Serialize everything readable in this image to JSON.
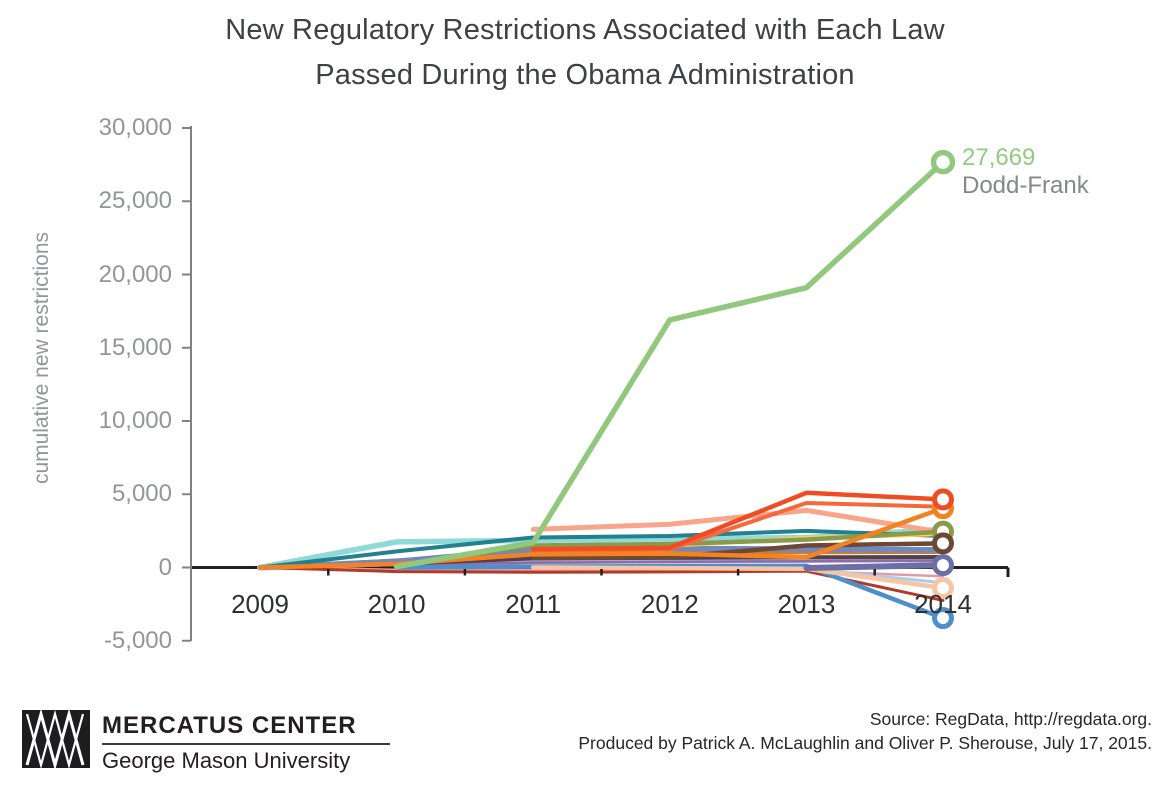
{
  "title": {
    "line1": "New Regulatory Restrictions Associated with Each Law",
    "line2": "Passed During the Obama Administration"
  },
  "chart_data": {
    "type": "line",
    "title": "New Regulatory Restrictions Associated with Each Law Passed During the Obama Administration",
    "xlabel": "",
    "ylabel": "cumulative new restrictions",
    "x": [
      2009,
      2010,
      2011,
      2012,
      2013,
      2014
    ],
    "x_tick_labels": [
      "2009",
      "2010",
      "2011",
      "2012",
      "2013",
      "2014"
    ],
    "y_ticks": [
      {
        "value": 30000,
        "label": "30,000"
      },
      {
        "value": 25000,
        "label": "25,000"
      },
      {
        "value": 20000,
        "label": "20,000"
      },
      {
        "value": 15000,
        "label": "15,000"
      },
      {
        "value": 10000,
        "label": "10,000"
      },
      {
        "value": 5000,
        "label": "5,000"
      },
      {
        "value": 0,
        "label": "0"
      },
      {
        "value": -5000,
        "label": "-5,000"
      }
    ],
    "ylim": [
      -5000,
      30000
    ],
    "grid": false,
    "legend_position": "none",
    "axis_colors": {
      "y_axis": "#808285",
      "x_axis": "#231f20",
      "y_tick_text": "#939598",
      "x_tick_text": "#2f3032"
    },
    "series": [
      {
        "name": "unlabeled-lavender",
        "color": "#b7aecf",
        "width": 6,
        "marker": false,
        "values": [
          0,
          300,
          430,
          480,
          520,
          560
        ]
      },
      {
        "name": "unlabeled-pink",
        "color": "#e39aa7",
        "width": 2.5,
        "marker": false,
        "values": [
          0,
          -150,
          -200,
          -230,
          -240,
          -600
        ]
      },
      {
        "name": "unlabeled-purple",
        "color": "#8d6cab",
        "width": 2.5,
        "marker": false,
        "values": [
          0,
          180,
          330,
          380,
          430,
          480
        ]
      },
      {
        "name": "unlabeled-eggplant",
        "color": "#52404b",
        "width": 4,
        "marker": false,
        "values": [
          0,
          260,
          620,
          660,
          700,
          720
        ]
      },
      {
        "name": "unlabeled-ochre",
        "color": "#c57f2e",
        "width": 3.5,
        "marker": false,
        "values": [
          0,
          500,
          950,
          1000,
          1020,
          1040
        ]
      },
      {
        "name": "unlabeled-brick",
        "color": "#b13a2a",
        "width": 3,
        "marker": false,
        "values": [
          0,
          -280,
          -320,
          -300,
          -250,
          -2250
        ]
      },
      {
        "name": "unlabeled-periwinkle",
        "color": "#7287bd",
        "width": 5.5,
        "marker": false,
        "values": [
          0,
          420,
          1250,
          1300,
          1260,
          1200
        ]
      },
      {
        "name": "unlabeled-lightblue",
        "color": "#a9cfe6",
        "width": 3,
        "marker": false,
        "values": [
          null,
          null,
          0,
          -30,
          -60,
          -1050
        ]
      },
      {
        "name": "unlabeled-steelblue",
        "color": "#4e8fc9",
        "width": 4.5,
        "marker": true,
        "values": [
          null,
          0,
          60,
          90,
          110,
          -3450
        ]
      },
      {
        "name": "unlabeled-peach",
        "color": "#f8c5a4",
        "width": 4.5,
        "marker": true,
        "values": [
          null,
          null,
          0,
          -40,
          -90,
          -1400
        ]
      },
      {
        "name": "unlabeled-cyan",
        "color": "#8fd9d9",
        "width": 5.5,
        "marker": false,
        "values": [
          0,
          1750,
          1850,
          1950,
          2050,
          2600
        ]
      },
      {
        "name": "unlabeled-teal",
        "color": "#23808e",
        "width": 4,
        "marker": false,
        "values": [
          0,
          1100,
          2050,
          2150,
          2500,
          2150
        ]
      },
      {
        "name": "unlabeled-yellow",
        "color": "#ffd34e",
        "width": 4.5,
        "marker": false,
        "values": [
          null,
          null,
          1450,
          1500,
          2000,
          2300
        ]
      },
      {
        "name": "unlabeled-salmon",
        "color": "#f9a48b",
        "width": 5,
        "marker": false,
        "values": [
          null,
          null,
          2600,
          2950,
          3900,
          2400
        ]
      },
      {
        "name": "unlabeled-olive",
        "color": "#8a9a4a",
        "width": 4.5,
        "marker": true,
        "values": [
          null,
          150,
          1500,
          1600,
          1900,
          2450
        ]
      },
      {
        "name": "unlabeled-brown",
        "color": "#6b4935",
        "width": 4.5,
        "marker": true,
        "values": [
          null,
          null,
          650,
          700,
          1500,
          1650
        ]
      },
      {
        "name": "unlabeled-slatepurple",
        "color": "#6a6fa5",
        "width": 6,
        "marker": true,
        "values": [
          null,
          null,
          null,
          null,
          -30,
          160
        ]
      },
      {
        "name": "unlabeled-redorange",
        "color": "#f4693b",
        "width": 4,
        "marker": false,
        "values": [
          null,
          null,
          1150,
          1250,
          4400,
          4150
        ]
      },
      {
        "name": "unlabeled-orange",
        "color": "#f58220",
        "width": 4.5,
        "marker": true,
        "values": [
          0,
          250,
          900,
          950,
          700,
          4050
        ]
      },
      {
        "name": "unlabeled-red",
        "color": "#f04c23",
        "width": 4.5,
        "marker": true,
        "values": [
          null,
          null,
          1250,
          1350,
          5100,
          4650
        ]
      },
      {
        "name": "dodd-frank",
        "color": "#92c87e",
        "width": 5.5,
        "marker": true,
        "values": [
          null,
          60,
          1700,
          16900,
          19100,
          27669
        ]
      }
    ],
    "annotation": {
      "series": "dodd-frank",
      "value_label": "27,669",
      "name_label": "Dodd-Frank",
      "value_color": "#92cb7e",
      "name_color": "#85878a"
    }
  },
  "footer": {
    "logo": {
      "icon": "mercatus-triangles-logo",
      "name": "MERCATUS CENTER",
      "subname": "George Mason University"
    },
    "source_line1": "Source: RegData, http://regdata.org.",
    "source_line2": "Produced by Patrick A. McLaughlin and Oliver P. Sherouse, July 17, 2015."
  }
}
